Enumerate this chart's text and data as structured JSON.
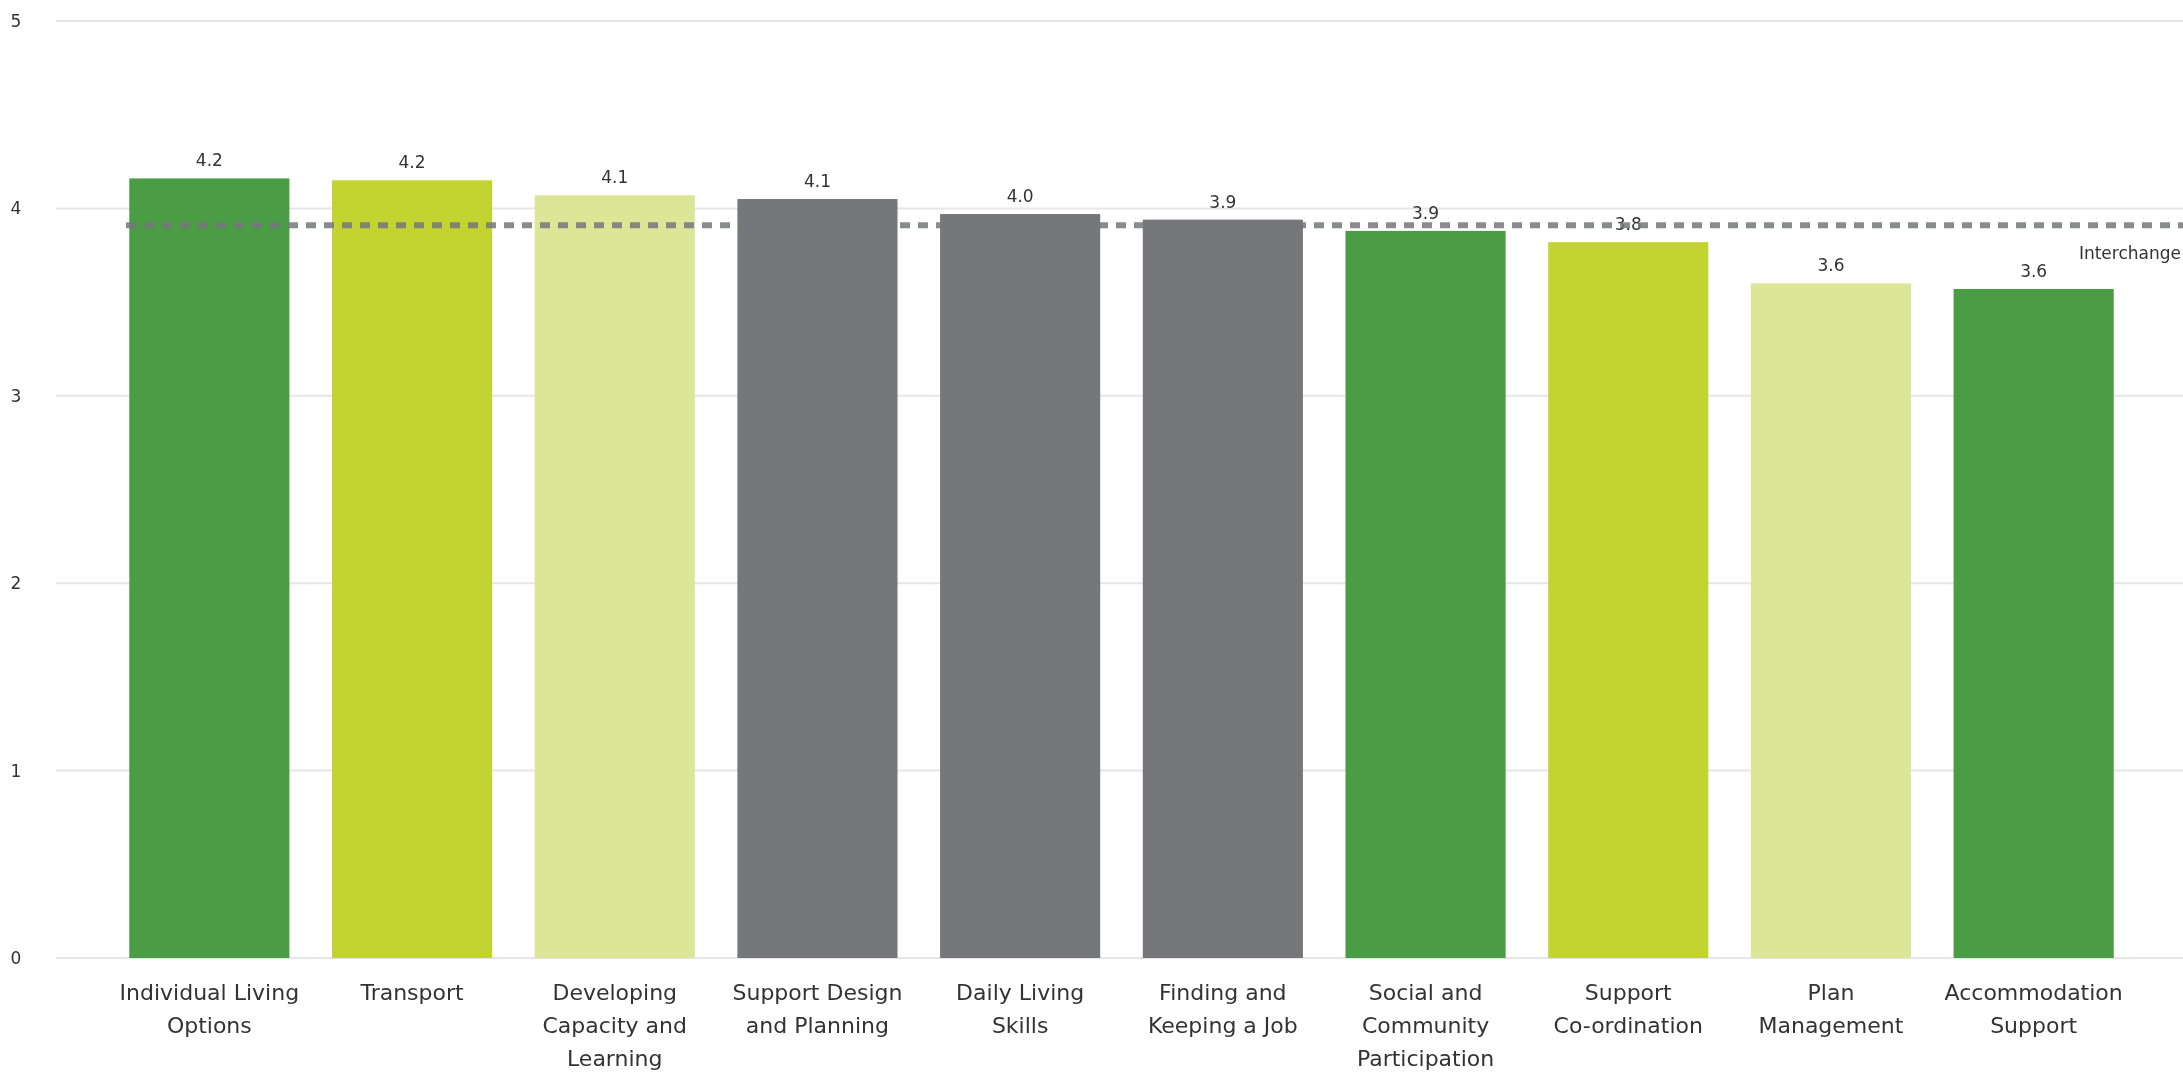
{
  "chart_data": {
    "type": "bar",
    "categories": [
      "Individual Living Options",
      "Transport",
      "Developing Capacity and Learning",
      "Support Design and Planning",
      "Daily Living Skills",
      "Finding and Keeping a Job",
      "Social and Community Participation",
      "Support Co-ordination",
      "Plan Management",
      "Accommodation Support"
    ],
    "values": [
      4.16,
      4.15,
      4.07,
      4.05,
      3.97,
      3.94,
      3.88,
      3.82,
      3.6,
      3.57
    ],
    "colors": [
      "#4a9c45",
      "#c2d332",
      "#dde697",
      "#76777b",
      "#76777b",
      "#76777b",
      "#4a9c45",
      "#c2d332",
      "#dde697",
      "#4a9c45"
    ],
    "value_labels": [
      "4.2",
      "4.2",
      "4.1",
      "4.1",
      "4.0",
      "3.9",
      "3.9",
      "3.8",
      "3.6",
      "3.6"
    ],
    "ylim": [
      0,
      5
    ],
    "yticks": [
      0,
      1,
      2,
      3,
      4,
      5
    ],
    "grid": "y",
    "ref_lines": [
      {
        "axis": "y",
        "value": 3.91,
        "label": "Interchange",
        "color": "#76777b",
        "line_style": "dashed"
      }
    ]
  }
}
